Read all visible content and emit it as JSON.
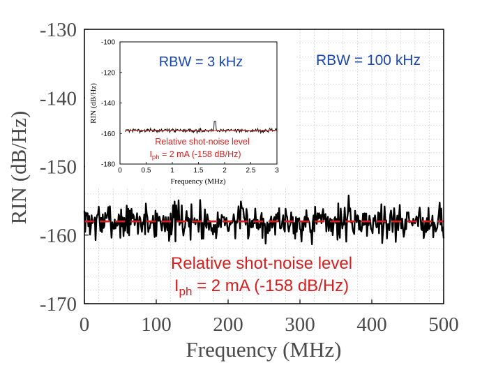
{
  "chart_data": [
    {
      "id": "main",
      "type": "line",
      "title": "",
      "xlabel": "Frequency (MHz)",
      "ylabel": "RIN (dB/Hz)",
      "xlim": [
        0,
        500
      ],
      "ylim": [
        -170,
        -130
      ],
      "xticks": [
        0,
        100,
        200,
        300,
        400,
        500
      ],
      "yticks": [
        -130,
        -140,
        -150,
        -160,
        -170
      ],
      "grid": true,
      "series": [
        {
          "kind": "measured-noise-trace",
          "color": "#000000",
          "x_range": [
            0,
            500
          ],
          "mean": -158,
          "spread": [
            -162,
            -154
          ],
          "points": 450
        },
        {
          "kind": "reference-line",
          "color": "#d62020",
          "style": "dashed",
          "value": -158
        }
      ],
      "annotations": [
        {
          "key": "rbw",
          "text": "RBW =  100 kHz",
          "color": "#1a47b0"
        },
        {
          "key": "shot1",
          "text": "Relative shot-noise level",
          "color": "#d62020"
        },
        {
          "key": "shot2_prefix",
          "text": "I",
          "color": "#d62020"
        },
        {
          "key": "shot2_sub",
          "text": "ph",
          "color": "#d62020"
        },
        {
          "key": "shot2_suffix",
          "text": " = 2 mA (-158 dB/Hz)",
          "color": "#d62020"
        }
      ]
    },
    {
      "id": "inset",
      "type": "line",
      "title": "",
      "xlabel": "Frequency (MHz)",
      "ylabel": "RIN (dB/Hz)",
      "xlim": [
        0,
        3
      ],
      "ylim": [
        -180,
        -100
      ],
      "xticks": [
        0,
        0.5,
        1,
        1.5,
        2,
        2.5,
        3
      ],
      "xtick_labels": [
        "0",
        "0.5",
        "1",
        "1.5",
        "2",
        "2.5",
        "3"
      ],
      "yticks": [
        -100,
        -120,
        -140,
        -160,
        -180
      ],
      "grid": false,
      "series": [
        {
          "kind": "measured-noise-trace",
          "color": "#000000",
          "x_range": [
            0.1,
            3
          ],
          "mean": -158,
          "spread": [
            -161,
            -152
          ],
          "points": 300
        },
        {
          "kind": "reference-line",
          "color": "#d62020",
          "style": "solid",
          "value": -158
        }
      ],
      "annotations": [
        {
          "key": "rbw",
          "text": "RBW =  3 kHz",
          "color": "#1a47b0"
        },
        {
          "key": "shot1",
          "text": "Relative shot-noise level",
          "color": "#d62020"
        },
        {
          "key": "shot2_prefix",
          "text": "I",
          "color": "#d62020"
        },
        {
          "key": "shot2_sub",
          "text": "ph",
          "color": "#d62020"
        },
        {
          "key": "shot2_suffix",
          "text": " = 2 mA (-158 dB/Hz)",
          "color": "#d62020"
        }
      ]
    }
  ]
}
